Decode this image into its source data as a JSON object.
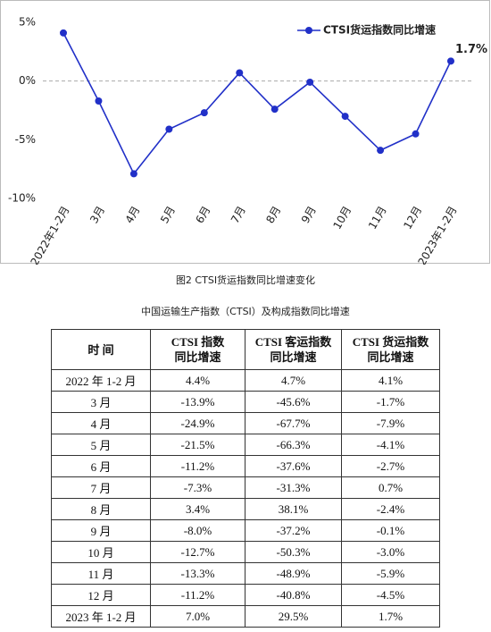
{
  "chart_data": {
    "type": "line",
    "categories": [
      "2022年1-2月",
      "3月",
      "4月",
      "5月",
      "6月",
      "7月",
      "8月",
      "9月",
      "10月",
      "11月",
      "12月",
      "2023年1-2月"
    ],
    "series": [
      {
        "name": "CTSI货运指数同比增速",
        "color": "#2130c8",
        "values": [
          4.1,
          -1.7,
          -7.9,
          -4.1,
          -2.7,
          0.7,
          -2.4,
          -0.1,
          -3.0,
          -5.9,
          -4.5,
          1.7
        ],
        "value_labels": [
          null,
          null,
          null,
          null,
          null,
          null,
          null,
          null,
          null,
          null,
          null,
          "1.7%"
        ]
      }
    ],
    "ylim": [
      -10,
      5
    ],
    "yticks": [
      {
        "value": 5,
        "label": "5%"
      },
      {
        "value": 0,
        "label": "0%"
      },
      {
        "value": -5,
        "label": "-5%"
      },
      {
        "value": -10,
        "label": "-10%"
      }
    ],
    "legend": "top-right"
  },
  "figure_caption": "图2 CTSI货运指数同比增速变化",
  "table": {
    "title": "中国运输生产指数（CTSI）及构成指数同比增速",
    "header": [
      [
        "时 间"
      ],
      [
        "CTSI 指数",
        "同比增速"
      ],
      [
        "CTSI 客运指数",
        "同比增速"
      ],
      [
        "CTSI 货运指数",
        "同比增速"
      ]
    ],
    "rows": [
      [
        "2022 年 1-2 月",
        "4.4%",
        "4.7%",
        "4.1%"
      ],
      [
        "3 月",
        "-13.9%",
        "-45.6%",
        "-1.7%"
      ],
      [
        "4 月",
        "-24.9%",
        "-67.7%",
        "-7.9%"
      ],
      [
        "5 月",
        "-21.5%",
        "-66.3%",
        "-4.1%"
      ],
      [
        "6 月",
        "-11.2%",
        "-37.6%",
        "-2.7%"
      ],
      [
        "7 月",
        "-7.3%",
        "-31.3%",
        "0.7%"
      ],
      [
        "8 月",
        "3.4%",
        "38.1%",
        "-2.4%"
      ],
      [
        "9 月",
        "-8.0%",
        "-37.2%",
        "-0.1%"
      ],
      [
        "10 月",
        "-12.7%",
        "-50.3%",
        "-3.0%"
      ],
      [
        "11 月",
        "-13.3%",
        "-48.9%",
        "-5.9%"
      ],
      [
        "12 月",
        "-11.2%",
        "-40.8%",
        "-4.5%"
      ],
      [
        "2023 年 1-2 月",
        "7.0%",
        "29.5%",
        "1.7%"
      ]
    ]
  }
}
